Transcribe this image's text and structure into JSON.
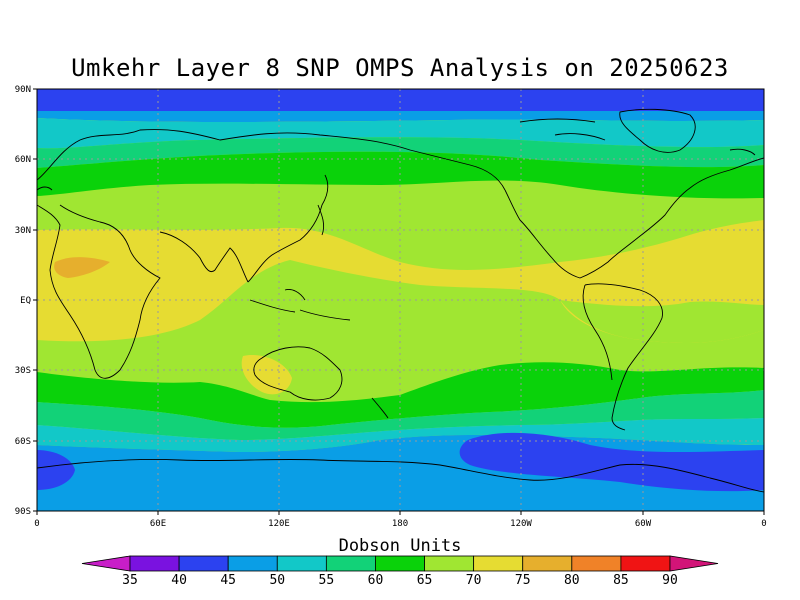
{
  "title": "Umkehr Layer 8 SNP OMPS Analysis on 20250623",
  "colorbar": {
    "label": "Dobson Units",
    "ticks": [
      "35",
      "40",
      "45",
      "50",
      "55",
      "60",
      "65",
      "70",
      "75",
      "80",
      "85",
      "90"
    ],
    "colors": [
      "#c81ec8",
      "#7a12e0",
      "#2c42f0",
      "#0a9ee6",
      "#12c8c8",
      "#12d278",
      "#0ad20a",
      "#a0e632",
      "#e6dc32",
      "#e6af2d",
      "#f08228",
      "#f01414",
      "#d21478"
    ]
  },
  "axes": {
    "lat_labels": [
      "90N",
      "60N",
      "30N",
      "EQ",
      "30S",
      "60S",
      "90S"
    ],
    "lon_labels": [
      "0",
      "60E",
      "120E",
      "180",
      "120W",
      "60W",
      "0"
    ]
  },
  "levels": {
    "deep_blue": "#2c42f0",
    "blue": "#0a9ee6",
    "cyan": "#12c8c8",
    "teal": "#12d278",
    "green": "#0ad20a",
    "light_green": "#a0e632",
    "yellow": "#e6dc32",
    "orange": "#e6af2d"
  }
}
